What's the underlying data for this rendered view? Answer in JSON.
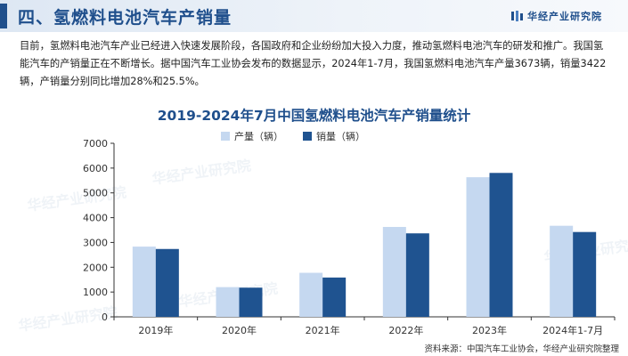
{
  "header": {
    "title": "四、氢燃料电池汽车产销量",
    "brand": "华经产业研究院"
  },
  "intro": "目前，氢燃料电池汽车产业已经进入快速发展阶段，各国政府和企业纷纷加大投入力度，推动氢燃料电池汽车的研发和推广。我国氢能汽车的产销量正在不断增长。据中国汽车工业协会发布的数据显示，2024年1-7月，我国氢燃料电池汽车产量3673辆，销量3422辆，产销量分别同比增加28%和25.5%。",
  "source": "资料来源：中国汽车工业协会，华经产业研究院整理",
  "colors": {
    "accent": "#1f4f8c",
    "production": "#c5d8f0",
    "sales": "#1f5390"
  },
  "chart_data": {
    "type": "bar",
    "title": "2019-2024年7月中国氢燃料电池汽车产销量统计",
    "categories": [
      "2019年",
      "2020年",
      "2021年",
      "2022年",
      "2023年",
      "2024年1-7月"
    ],
    "series": [
      {
        "name": "产量（辆）",
        "values": [
          2833,
          1199,
          1777,
          3626,
          5631,
          3673
        ]
      },
      {
        "name": "销量（辆）",
        "values": [
          2737,
          1177,
          1586,
          3367,
          5805,
          3422
        ]
      }
    ],
    "xlabel": "",
    "ylabel": "",
    "ylim": [
      0,
      7000
    ],
    "yticks": [
      0,
      1000,
      2000,
      3000,
      4000,
      5000,
      6000,
      7000
    ],
    "legend": "top-center",
    "grid": false
  }
}
